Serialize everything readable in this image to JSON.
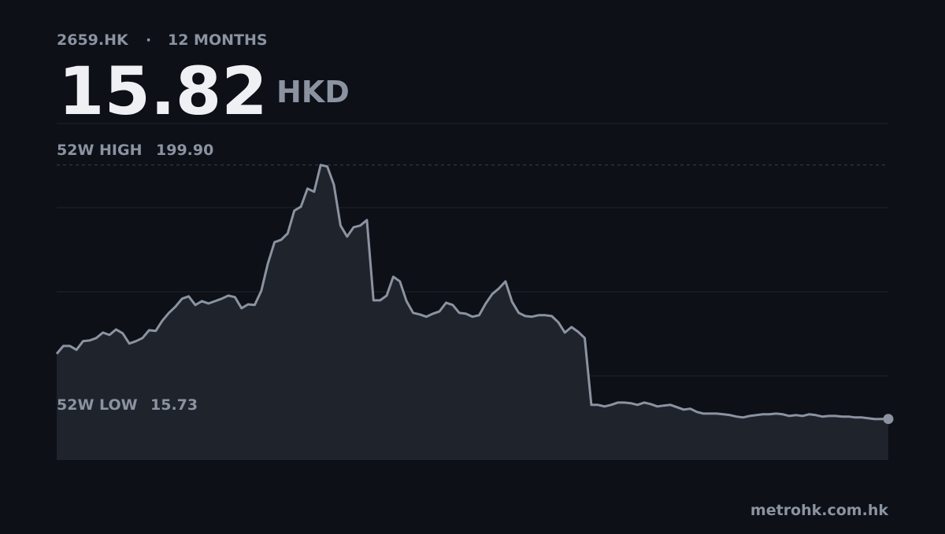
{
  "chart_data": {
    "type": "line",
    "ticker": "2659.HK",
    "separator": "·",
    "period": "12 MONTHS",
    "price": 15.82,
    "currency": "HKD",
    "high": {
      "label": "52W HIGH",
      "value": 199.9,
      "value_label": "199.90"
    },
    "low": {
      "label": "52W LOW",
      "value": 15.73
    },
    "values": [
      63.0,
      68.7,
      68.7,
      65.9,
      72.2,
      72.7,
      74.5,
      78.4,
      76.7,
      80.7,
      77.9,
      70.5,
      72.2,
      74.5,
      80.1,
      79.6,
      87.0,
      92.7,
      97.3,
      103.0,
      104.7,
      98.4,
      101.2,
      99.5,
      101.2,
      103.0,
      105.2,
      104.1,
      96.1,
      98.9,
      98.4,
      108.7,
      128.6,
      144.0,
      145.7,
      150.3,
      166.8,
      169.7,
      182.8,
      180.5,
      199.9,
      198.8,
      185.6,
      156.0,
      148.0,
      154.8,
      156.0,
      160.0,
      101.8,
      101.8,
      105.2,
      118.9,
      115.5,
      101.2,
      92.7,
      91.6,
      89.9,
      92.1,
      93.8,
      100.1,
      98.4,
      92.7,
      92.1,
      89.9,
      91.0,
      99.5,
      106.4,
      110.4,
      115.5,
      100.7,
      92.7,
      90.4,
      89.9,
      91.0,
      91.0,
      90.4,
      85.9,
      78.4,
      82.4,
      79.0,
      74.5,
      26.0,
      26.0,
      24.9,
      26.0,
      27.7,
      27.7,
      27.2,
      26.0,
      27.7,
      26.6,
      24.9,
      25.5,
      26.0,
      24.3,
      22.6,
      23.2,
      20.9,
      19.7,
      19.7,
      19.7,
      19.2,
      18.6,
      17.5,
      16.9,
      18.0,
      18.6,
      19.2,
      19.2,
      19.7,
      19.2,
      18.0,
      18.6,
      18.0,
      19.2,
      18.6,
      17.5,
      18.0,
      18.0,
      17.5,
      17.5,
      16.9,
      16.9,
      16.3,
      15.73,
      15.8,
      15.82
    ],
    "color": "#8b93a1",
    "fill": "#1f232b",
    "ylim": [
      -14,
      230
    ],
    "source": "metrohk.com.hk"
  }
}
